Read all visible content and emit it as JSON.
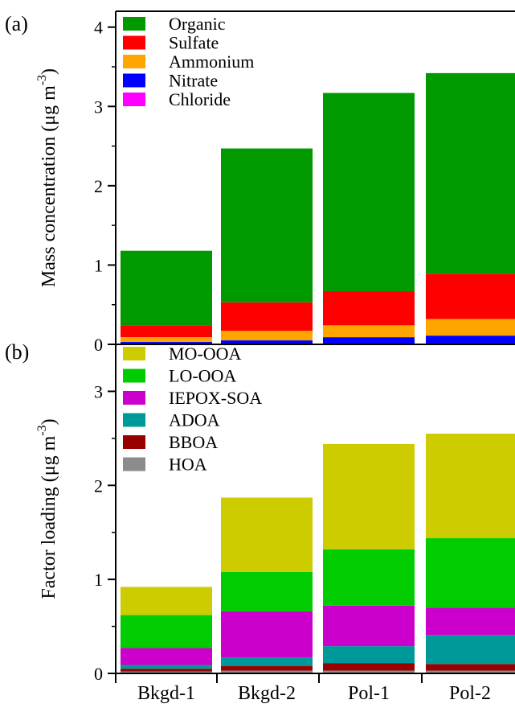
{
  "chart_data": [
    {
      "panel_label": "(a)",
      "type": "bar",
      "stacked": true,
      "categories": [
        "Bkgd-1",
        "Bkgd-2",
        "Pol-1",
        "Pol-2"
      ],
      "ylabel_main": "Mass concentration (μg m",
      "ylabel_sup": "-3",
      "ylabel_close": ")",
      "ylim": [
        0,
        4.2
      ],
      "yticks": [
        0,
        1,
        2,
        3,
        4
      ],
      "legend_position": "top-left",
      "series": [
        {
          "name": "Chloride",
          "color": "#ff00ff",
          "values": [
            0.01,
            0.01,
            0.01,
            0.01
          ]
        },
        {
          "name": "Nitrate",
          "color": "#0000ff",
          "values": [
            0.02,
            0.04,
            0.08,
            0.1
          ]
        },
        {
          "name": "Ammonium",
          "color": "#ffa500",
          "values": [
            0.06,
            0.12,
            0.15,
            0.21
          ]
        },
        {
          "name": "Sulfate",
          "color": "#ff0000",
          "values": [
            0.15,
            0.36,
            0.43,
            0.57
          ]
        },
        {
          "name": "Organic",
          "color": "#009900",
          "values": [
            0.94,
            1.94,
            2.5,
            2.53
          ]
        }
      ],
      "legend_order": [
        "Organic",
        "Sulfate",
        "Ammonium",
        "Nitrate",
        "Chloride"
      ]
    },
    {
      "panel_label": "(b)",
      "type": "bar",
      "stacked": true,
      "categories": [
        "Bkgd-1",
        "Bkgd-2",
        "Pol-1",
        "Pol-2"
      ],
      "ylabel_main": "Factor loading (μg m",
      "ylabel_sup": "-3",
      "ylabel_close": ")",
      "ylim": [
        0,
        3.5
      ],
      "yticks": [
        0,
        1,
        2,
        3
      ],
      "legend_position": "top-left",
      "series": [
        {
          "name": "HOA",
          "color": "#8c8c8c",
          "values": [
            0.02,
            0.03,
            0.03,
            0.03
          ]
        },
        {
          "name": "BBOA",
          "color": "#990000",
          "values": [
            0.03,
            0.05,
            0.08,
            0.07
          ]
        },
        {
          "name": "ADOA",
          "color": "#009999",
          "values": [
            0.04,
            0.09,
            0.18,
            0.31
          ]
        },
        {
          "name": "IEPOX-SOA",
          "color": "#cc00cc",
          "values": [
            0.18,
            0.49,
            0.43,
            0.29
          ]
        },
        {
          "name": "LO-OOA",
          "color": "#00cc00",
          "values": [
            0.35,
            0.42,
            0.6,
            0.74
          ]
        },
        {
          "name": "MO-OOA",
          "color": "#cccc00",
          "values": [
            0.3,
            0.79,
            1.12,
            1.11
          ]
        }
      ],
      "legend_order": [
        "MO-OOA",
        "LO-OOA",
        "IEPOX-SOA",
        "ADOA",
        "BBOA",
        "HOA"
      ]
    }
  ]
}
